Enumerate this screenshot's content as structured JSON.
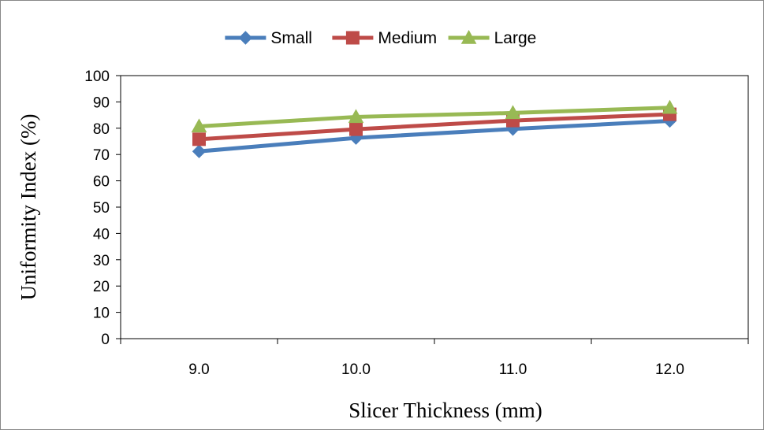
{
  "chart_data": {
    "type": "line",
    "title": "",
    "xlabel": "Slicer Thickness (mm)",
    "ylabel": "Uniformity Index (%)",
    "categories": [
      "9.0",
      "10.0",
      "11.0",
      "12.0"
    ],
    "ylim": [
      0,
      100
    ],
    "yticks": [
      "0",
      "10",
      "20",
      "30",
      "40",
      "50",
      "60",
      "70",
      "80",
      "90",
      "100"
    ],
    "grid": false,
    "legend_position": "top",
    "series": [
      {
        "name": "Small",
        "values": [
          71.2,
          76.3,
          79.7,
          82.8
        ],
        "color": "#4a7ebb",
        "marker": "diamond"
      },
      {
        "name": "Medium",
        "values": [
          75.8,
          79.6,
          82.9,
          85.3
        ],
        "color": "#be4b48",
        "marker": "square"
      },
      {
        "name": "Large",
        "values": [
          80.7,
          84.3,
          85.8,
          87.8
        ],
        "color": "#98b954",
        "marker": "triangle"
      }
    ]
  }
}
